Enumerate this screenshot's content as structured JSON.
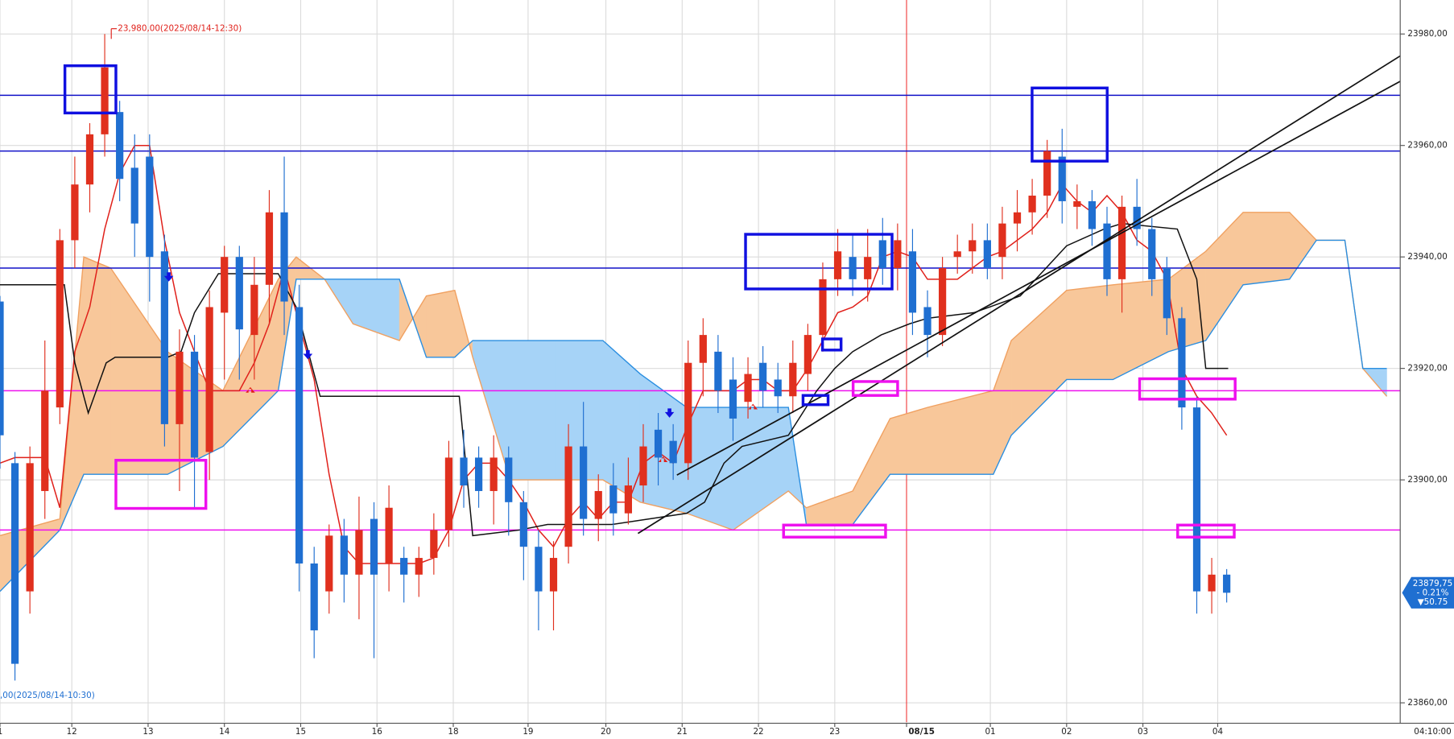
{
  "chart_data": {
    "type": "candlestick",
    "up_color": "#e0301e",
    "down_color": "#1f6fd1",
    "grid": true,
    "xlim": [
      0,
      93.6
    ],
    "ylim": [
      23856.5,
      23986.1
    ],
    "xticks": [
      {
        "value": 0,
        "label": "1"
      },
      {
        "value": 4.8,
        "label": "12"
      },
      {
        "value": 9.9,
        "label": "13"
      },
      {
        "value": 15,
        "label": "14"
      },
      {
        "value": 20.1,
        "label": "15"
      },
      {
        "value": 25.2,
        "label": "16"
      },
      {
        "value": 30.3,
        "label": "18"
      },
      {
        "value": 35.3,
        "label": "19"
      },
      {
        "value": 40.5,
        "label": "20"
      },
      {
        "value": 45.6,
        "label": "21"
      },
      {
        "value": 50.7,
        "label": "22"
      },
      {
        "value": 55.8,
        "label": "23"
      },
      {
        "value": 60.6,
        "label": "08/15"
      },
      {
        "value": 66.2,
        "label": "01"
      },
      {
        "value": 71.3,
        "label": "02"
      },
      {
        "value": 76.4,
        "label": "03"
      },
      {
        "value": 81.4,
        "label": "04"
      }
    ],
    "yticks": [
      {
        "value": 23860,
        "label": "23860,00"
      },
      {
        "value": 23900,
        "label": "23900,00"
      },
      {
        "value": 23920,
        "label": "23920,00"
      },
      {
        "value": 23940,
        "label": "23940,00"
      },
      {
        "value": 23960,
        "label": "23960,00"
      },
      {
        "value": 23980,
        "label": "23980,00"
      }
    ],
    "open": [
      23932,
      23903,
      23880,
      23898,
      23913,
      23943,
      23953,
      23962,
      23966,
      23956,
      23958,
      23941,
      23910,
      23923,
      23905,
      23930,
      23940,
      23926,
      23935,
      23948,
      23931,
      23885,
      23880,
      23890,
      23883,
      23893,
      23885,
      23886,
      23883,
      23886,
      23891,
      23904,
      23904,
      23898,
      23904,
      23896,
      23888,
      23880,
      23888,
      23906,
      23893,
      23899,
      23894,
      23899,
      23909,
      23907,
      23903,
      23921,
      23923,
      23918,
      23914,
      23921,
      23918,
      23915,
      23919,
      23926,
      23936,
      23940,
      23936,
      23943,
      23938,
      23941,
      23931,
      23926,
      23940,
      23941,
      23943,
      23940,
      23946,
      23948,
      23951,
      23958,
      23949,
      23950,
      23946,
      23936,
      23949,
      23945,
      23938,
      23929,
      23913,
      23880,
      23883
    ],
    "high": [
      23933,
      23905,
      23906,
      23925,
      23945,
      23958,
      23964,
      23980,
      23968,
      23962,
      23962,
      23944,
      23927,
      23926,
      23934,
      23942,
      23942,
      23940,
      23952,
      23958,
      23935,
      23888,
      23892,
      23893,
      23897,
      23896,
      23899,
      23888,
      23888,
      23894,
      23907,
      23909,
      23906,
      23908,
      23906,
      23898,
      23891,
      23889,
      23910,
      23914,
      23901,
      23903,
      23904,
      23910,
      23912,
      23910,
      23925,
      23929,
      23926,
      23922,
      23922,
      23924,
      23921,
      23925,
      23928,
      23939,
      23945,
      23944,
      23945,
      23947,
      23946,
      23945,
      23934,
      23940,
      23944,
      23946,
      23946,
      23949,
      23952,
      23954,
      23961,
      23963,
      23953,
      23952,
      23949,
      23951,
      23954,
      23947,
      23940,
      23931,
      23915,
      23886,
      23884
    ],
    "low": [
      23902,
      23864,
      23876,
      23893,
      23910,
      23938,
      23948,
      23958,
      23950,
      23940,
      23932,
      23906,
      23898,
      23895,
      23900,
      23918,
      23918,
      23918,
      23928,
      23926,
      23880,
      23868,
      23876,
      23878,
      23875,
      23868,
      23880,
      23878,
      23879,
      23883,
      23888,
      23895,
      23895,
      23892,
      23890,
      23882,
      23873,
      23873,
      23885,
      23890,
      23889,
      23890,
      23892,
      23896,
      23899,
      23900,
      23900,
      23915,
      23912,
      23907,
      23911,
      23913,
      23912,
      23912,
      23916,
      23923,
      23933,
      23933,
      23932,
      23935,
      23934,
      23926,
      23922,
      23924,
      23937,
      23937,
      23936,
      23936,
      23941,
      23944,
      23947,
      23946,
      23945,
      23942,
      23933,
      23930,
      23942,
      23933,
      23926,
      23909,
      23876,
      23876,
      23878
    ],
    "close": [
      23908,
      23867,
      23903,
      23916,
      23943,
      23953,
      23962,
      23974,
      23954,
      23946,
      23940,
      23910,
      23923,
      23904,
      23931,
      23940,
      23927,
      23935,
      23948,
      23932,
      23885,
      23873,
      23890,
      23883,
      23891,
      23883,
      23895,
      23883,
      23886,
      23891,
      23904,
      23899,
      23898,
      23904,
      23896,
      23888,
      23880,
      23886,
      23906,
      23893,
      23898,
      23894,
      23899,
      23906,
      23904,
      23903,
      23921,
      23926,
      23916,
      23911,
      23919,
      23916,
      23915,
      23921,
      23926,
      23936,
      23941,
      23936,
      23940,
      23938,
      23943,
      23930,
      23926,
      23938,
      23941,
      23943,
      23938,
      23946,
      23948,
      23951,
      23959,
      23950,
      23950,
      23945,
      23936,
      23949,
      23945,
      23936,
      23929,
      23913,
      23880,
      23883,
      23879.75
    ],
    "lines": [
      {
        "color": "#e0201a",
        "values": [
          23903,
          23904,
          23904,
          23904,
          23895,
          23923,
          23931,
          23945,
          23955,
          23960,
          23960,
          23943,
          23930,
          23923,
          23916,
          23916,
          23916,
          23921,
          23928,
          23938,
          23928,
          23918,
          23901,
          23888,
          23885,
          23885,
          23885,
          23885,
          23885,
          23886,
          23891,
          23900,
          23903,
          23903,
          23900,
          23896,
          23891,
          23888,
          23893,
          23896,
          23893,
          23896,
          23896,
          23903,
          23905,
          23903,
          23910,
          23916,
          23916,
          23916,
          23918,
          23918,
          23916,
          23916,
          23920,
          23925,
          23930,
          23931,
          23933,
          23940,
          23941,
          23940,
          23936,
          23936,
          23936,
          23938,
          23940,
          23941,
          23943,
          23945,
          23948,
          23953,
          23950,
          23948,
          23951,
          23948,
          23943,
          23941,
          23936,
          23920,
          23915,
          23912,
          23908
        ]
      },
      {
        "color": "#111111",
        "x": [
          0,
          4.3,
          5,
          5.9,
          7.1,
          7.7,
          11.2,
          12.1,
          13,
          14.6,
          18.6,
          19.8,
          21.4,
          30.7,
          31.6,
          34.7,
          36.6,
          40.9,
          45.9,
          47.1,
          48.4,
          49.6,
          52.7,
          54.6,
          55.8,
          57,
          58.9,
          60.8,
          62,
          65.1,
          68.2,
          71.3,
          73.8,
          75,
          78.7,
          80,
          80.6,
          82.1
        ],
        "values": [
          23935,
          23935,
          23921,
          23912,
          23921,
          23922,
          23922,
          23923,
          23930,
          23937,
          23937,
          23931,
          23915,
          23915,
          23890,
          23891,
          23892,
          23892,
          23894,
          23896,
          23903,
          23906,
          23908,
          23916,
          23920,
          23923,
          23926,
          23928,
          23929,
          23930,
          23933,
          23942,
          23945,
          23946,
          23945,
          23936,
          23920,
          23920
        ]
      }
    ],
    "cloud": {
      "x": [
        0,
        4.0,
        5.6,
        7.4,
        11.2,
        14.9,
        18.6,
        19.8,
        21.7,
        23.6,
        26.7,
        28.5,
        30.4,
        31.6,
        34.1,
        37.2,
        40.3,
        42.8,
        45.9,
        49.0,
        52.7,
        53.9,
        57.0,
        59.5,
        62.0,
        66.4,
        67.6,
        71.3,
        74.4,
        78.1,
        80.6,
        83.1,
        86.2,
        88.0,
        89.9,
        91.1,
        92.7
      ],
      "span_a": [
        23890,
        23893,
        23940,
        23938,
        23923,
        23916,
        23936,
        23940,
        23936,
        23928,
        23925,
        23933,
        23934,
        23922,
        23900,
        23900,
        23900,
        23896,
        23894,
        23891,
        23898,
        23895,
        23898,
        23911,
        23913,
        23916,
        23925,
        23934,
        23935,
        23936,
        23941,
        23948,
        23948,
        23943,
        23943,
        23920,
        23915
      ],
      "span_b": [
        23880,
        23891,
        23901,
        23901,
        23901,
        23906,
        23916,
        23936,
        23936,
        23936,
        23936,
        23922,
        23922,
        23925,
        23925,
        23925,
        23925,
        23919,
        23913,
        23913,
        23913,
        23892,
        23892,
        23901,
        23901,
        23901,
        23908,
        23918,
        23918,
        23923,
        23925,
        23935,
        23936,
        23943,
        23943,
        23920,
        23920
      ],
      "span_a_color": "#f0a060",
      "span_b_color": "#2a8ee0",
      "up_fill": "#f8c79a",
      "down_fill": "#a6d3f7"
    },
    "levels": [
      {
        "value": 23969,
        "color": "#1010c8"
      },
      {
        "value": 23959,
        "color": "#1010c8"
      },
      {
        "value": 23938,
        "color": "#1010c8"
      },
      {
        "value": 23916,
        "color": "#ee10ee"
      },
      {
        "value": 23891,
        "color": "#ee10ee"
      }
    ],
    "high_label": "23,980,00(2025/08/14-12:30)",
    "low_label": ",00(2025/08/14-10:30)",
    "last_price": {
      "value": 23879.75,
      "label": "23879,75"
    },
    "change_label": "- 0.21%",
    "change_points_label": "▼50.75",
    "time_label": "04:10:00"
  }
}
